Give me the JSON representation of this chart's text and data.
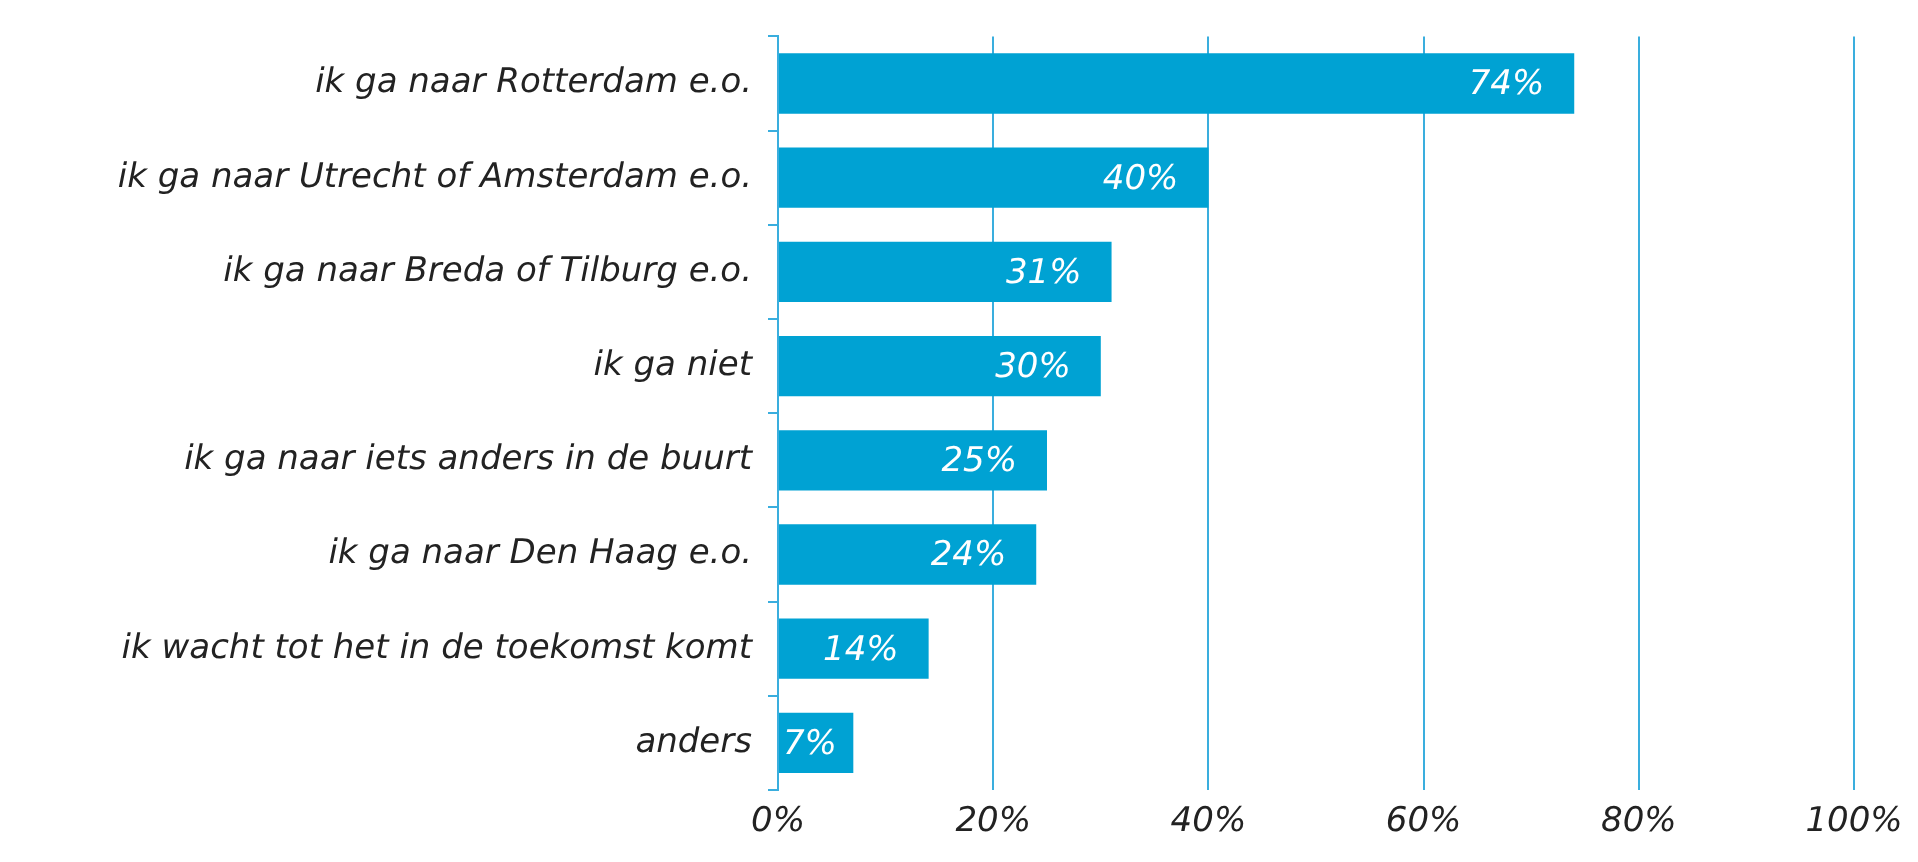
{
  "chart_data": {
    "type": "bar",
    "orientation": "horizontal",
    "categories": [
      "ik ga naar Rotterdam e.o.",
      "ik ga naar Utrecht of Amsterdam e.o.",
      "ik ga naar Breda of Tilburg e.o.",
      "ik ga niet",
      "ik ga naar iets anders in de buurt",
      "ik ga naar Den Haag e.o.",
      "ik wacht tot het in de toekomst komt",
      "anders"
    ],
    "values": [
      74,
      40,
      31,
      30,
      25,
      24,
      14,
      7
    ],
    "value_labels": [
      "74%",
      "40%",
      "31%",
      "30%",
      "25%",
      "24%",
      "14%",
      "7%"
    ],
    "color": "#00a2d3",
    "xlim": [
      0,
      100
    ],
    "xticks": [
      {
        "value": 0,
        "label": "0%"
      },
      {
        "value": 20,
        "label": "20%"
      },
      {
        "value": 40,
        "label": "40%"
      },
      {
        "value": 60,
        "label": "60%"
      },
      {
        "value": 80,
        "label": "80%"
      },
      {
        "value": 100,
        "label": "100%"
      }
    ],
    "grid": "x",
    "legend": false
  }
}
